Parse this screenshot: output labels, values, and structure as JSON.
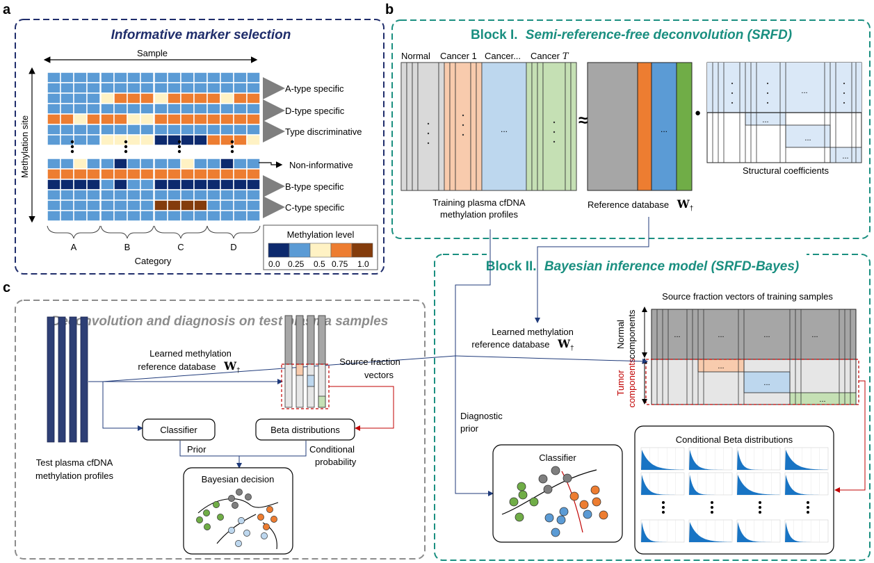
{
  "panel_a": {
    "letter": "a",
    "title": "Informative marker selection",
    "sample_label": "Sample",
    "site_label": "Methylation site",
    "category_label": "Category",
    "categories": [
      "A",
      "B",
      "C",
      "D"
    ],
    "row_labels": [
      "A-type specific",
      "D-type specific",
      "Type discriminative",
      "Non-informative",
      "B-type specific",
      "C-type specific"
    ],
    "legend_title": "Methylation level",
    "legend_ticks": [
      "0.0",
      "0.25",
      "0.5",
      "0.75",
      "1.0"
    ],
    "legend_colors": [
      "#0d2a6e",
      "#5b9bd5",
      "#fff2c4",
      "#ed7d31",
      "#843c0c"
    ]
  },
  "panel_b": {
    "letter": "b",
    "title_prefix": "Block I.",
    "title_italic": "Semi-reference-free deconvolution (SRFD)",
    "col_labels": [
      "Normal",
      "Cancer 1",
      "Cancer...",
      "Cancer"
    ],
    "col_label_T": "T",
    "training_caption_1": "Training plasma cfDNA",
    "training_caption_2": "methylation profiles",
    "approx_symbol": "≈",
    "dot_symbol": "●",
    "ellipsis": "...",
    "reference_caption": "Reference database",
    "w_symbol": "W",
    "w_sub": "†",
    "structural_caption": "Structural coefficients"
  },
  "panel_b2": {
    "title_prefix": "Block II.",
    "title_italic": "Bayesian inference model  (SRFD-Bayes)",
    "source_title": "Source fraction vectors of training samples",
    "learned_1": "Learned methylation",
    "learned_2": "reference database",
    "normal_label_1": "Normal",
    "normal_label_2": "components",
    "tumor_label_1": "Tumor",
    "tumor_label_2": "components",
    "diag_prior_1": "Diagnostic",
    "diag_prior_2": "prior",
    "classifier": "Classifier",
    "beta_title": "Conditional Beta distributions"
  },
  "panel_c": {
    "letter": "c",
    "title": "Deconvolution and diagnosis on test plasma samples",
    "learned_1": "Learned methylation",
    "learned_2": "reference database",
    "source_1": "Source fraction",
    "source_2": "vectors",
    "classifier": "Classifier",
    "beta": "Beta distributions",
    "prior": "Prior",
    "cond_1": "Conditional",
    "cond_2": "probability",
    "test_1": "Test plasma cfDNA",
    "test_2": "methylation profiles",
    "bayes": "Bayesian decision"
  },
  "colors": {
    "navy": "#1f2d6b",
    "teal": "#1a8f80",
    "gray_border": "#8c8c8c",
    "normal_gray": "#a6a6a6",
    "light_gray": "#e6e6e6",
    "orange": "#ed7d31",
    "blue": "#5b9bd5",
    "green": "#70ad47",
    "pale_orange": "#f8cbad",
    "pale_blue": "#bdd7ee",
    "pale_green": "#c5e0b4",
    "tumor_red": "#c00000",
    "beta_fill": "#1874c4"
  }
}
